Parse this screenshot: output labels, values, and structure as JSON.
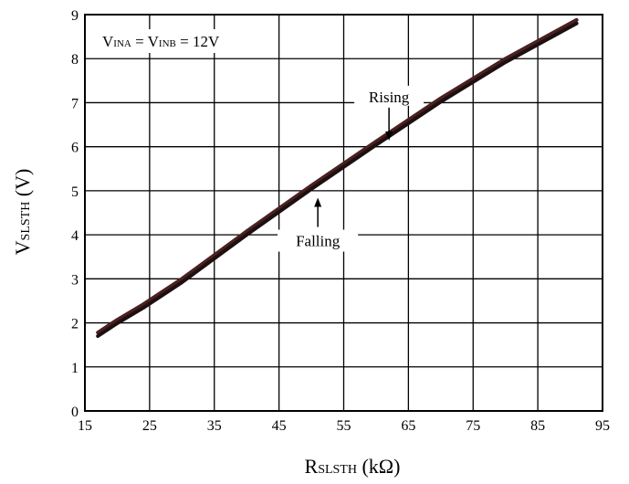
{
  "chart_data": {
    "type": "line",
    "xlabel": {
      "main": "R",
      "sub": "SLSTH",
      "unit": " (kΩ)"
    },
    "ylabel": {
      "main": "V",
      "sub": "SLSTH",
      "unit": " (V)"
    },
    "xlim": [
      15,
      95
    ],
    "ylim": [
      0,
      9
    ],
    "xticks": [
      15,
      25,
      35,
      45,
      55,
      65,
      75,
      85,
      95
    ],
    "yticks": [
      0,
      1,
      2,
      3,
      4,
      5,
      6,
      7,
      8,
      9
    ],
    "grid": true,
    "condition": {
      "v1": "V",
      "s1": "INA",
      "eq1": " = ",
      "v2": "V",
      "s2": "INB",
      "rest": " = 12V"
    },
    "series": [
      {
        "name": "Rising",
        "color": "#4a2020",
        "x": [
          17,
          20,
          24,
          30,
          40,
          50,
          60,
          70,
          80,
          91
        ],
        "y": [
          1.78,
          2.07,
          2.42,
          3.0,
          4.08,
          5.12,
          6.12,
          7.1,
          8.0,
          8.88
        ]
      },
      {
        "name": "Falling",
        "color": "#1e1010",
        "x": [
          17,
          20,
          24,
          30,
          40,
          50,
          60,
          70,
          80,
          91
        ],
        "y": [
          1.7,
          1.99,
          2.34,
          2.92,
          4.0,
          5.04,
          6.04,
          7.02,
          7.92,
          8.8
        ]
      }
    ],
    "annotations": [
      {
        "text": "Rising",
        "x": 62,
        "y": 6.1
      },
      {
        "text": "Falling",
        "x": 51,
        "y": 4.8
      }
    ]
  }
}
